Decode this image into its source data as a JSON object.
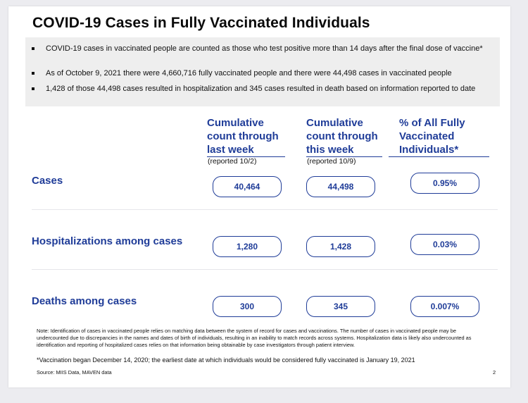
{
  "title": "COVID-19 Cases in Fully Vaccinated Individuals",
  "bullets": [
    "COVID-19 cases in vaccinated people are counted as those who test positive more than 14 days after the final dose of vaccine*",
    "As of October 9, 2021 there were 4,660,716 fully vaccinated people and there were 44,498 cases in vaccinated people",
    "1,428 of those 44,498 cases resulted in hospitalization and 345 cases resulted in death based on information reported to date"
  ],
  "columns": [
    {
      "header": [
        "Cumulative",
        "count through",
        "last week"
      ],
      "sub": "(reported 10/2)"
    },
    {
      "header": [
        "Cumulative",
        "count through",
        "this week"
      ],
      "sub": "(reported 10/9)"
    },
    {
      "header": [
        "% of All Fully",
        "Vaccinated",
        "Individuals*"
      ],
      "sub": ""
    }
  ],
  "rows": [
    {
      "label": "Cases",
      "values": [
        "40,464",
        "44,498",
        "0.95%"
      ]
    },
    {
      "label": "Hospitalizations among cases",
      "values": [
        "1,280",
        "1,428",
        "0.03%"
      ]
    },
    {
      "label": "Deaths among cases",
      "values": [
        "300",
        "345",
        "0.007%"
      ]
    }
  ],
  "note": "Note: Identification of cases in vaccinated people relies on matching data between the system of record for cases and vaccinations. The number of cases in vaccinated people may be undercounted due to discrepancies in the names and dates of birth of individuals, resulting in an inability to match records across systems. Hospitalization data is likely also undercounted as identification and reporting of hospitalized cases relies on that information being obtainable by case investigators through patient interview.",
  "vaccination_note": "*Vaccination began December 14, 2020; the earliest date at which individuals would be considered fully vaccinated is January 19, 2021",
  "source": "Source: MIIS Data, MAVEN data",
  "page_number": "2",
  "colors": {
    "accent": "#1f3c98",
    "panel": "#eeeeee"
  }
}
